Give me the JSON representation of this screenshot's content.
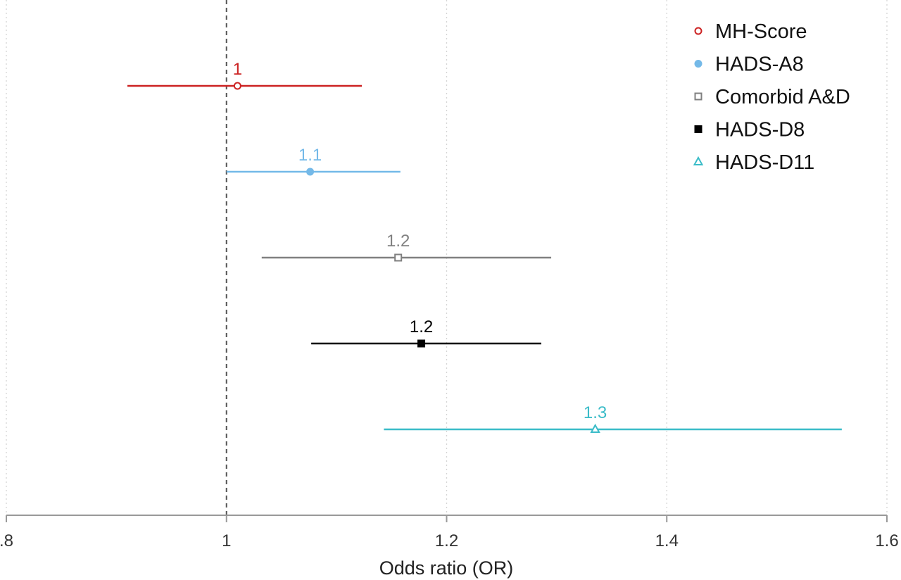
{
  "chart_data": {
    "type": "forest",
    "xlabel": "Odds ratio (OR)",
    "xlim": [
      0.8,
      1.6
    ],
    "x_ticks": [
      0.8,
      1.0,
      1.2,
      1.4,
      1.6
    ],
    "x_tick_labels": [
      ".8",
      "1",
      "1.2",
      "1.4",
      "1.6"
    ],
    "reference_line": 1.0,
    "grid": "vertical dotted",
    "legend_position": "top-right",
    "series": [
      {
        "name": "MH-Score",
        "estimate": 1.01,
        "lower": 0.91,
        "upper": 1.123,
        "label": "1",
        "color": "#cc2222",
        "marker": "hollow-circle"
      },
      {
        "name": "HADS-A8",
        "estimate": 1.076,
        "lower": 1.0,
        "upper": 1.158,
        "label": "1.1",
        "color": "#74b9e8",
        "marker": "filled-circle"
      },
      {
        "name": "Comorbid A&D",
        "estimate": 1.156,
        "lower": 1.032,
        "upper": 1.295,
        "label": "1.2",
        "color": "#808080",
        "marker": "hollow-square"
      },
      {
        "name": "HADS-D8",
        "estimate": 1.177,
        "lower": 1.077,
        "upper": 1.286,
        "label": "1.2",
        "color": "#000000",
        "marker": "filled-square"
      },
      {
        "name": "HADS-D11",
        "estimate": 1.335,
        "lower": 1.143,
        "upper": 1.559,
        "label": "1.3",
        "color": "#3bbcc8",
        "marker": "hollow-triangle"
      }
    ]
  }
}
